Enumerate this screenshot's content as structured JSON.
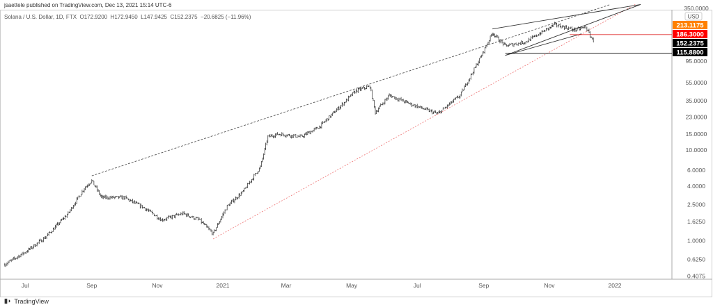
{
  "header": {
    "published": "jsaettele published on TradingView.com, Dec 13, 2021 15:14 UTC-6",
    "symbol": "Solana / U.S. Dollar, 1D, FTX",
    "open": "O172.9200",
    "high": "H172.9450",
    "low": "L147.9425",
    "close": "C152.2375",
    "change": "−20.6825 (−11.96%)"
  },
  "footer": {
    "brand": "TradingView"
  },
  "chart_data": {
    "type": "candlestick",
    "scale": "log",
    "currency": "USD",
    "ylim": [
      0.4075,
      350
    ],
    "y_ticks": [
      "350.0000",
      "95.0000",
      "55.0000",
      "35.0000",
      "23.0000",
      "15.0000",
      "10.0000",
      "6.0000",
      "4.0000",
      "2.5000",
      "1.6250",
      "1.0000",
      "0.6250",
      "0.4075"
    ],
    "y_tick_values": [
      350,
      95,
      55,
      35,
      23,
      15,
      10,
      6,
      4,
      2.5,
      1.625,
      1,
      0.625,
      0.4075
    ],
    "x_ticks": [
      [
        "Jul",
        "2020-07-01"
      ],
      [
        "Sep",
        "2020-09-01"
      ],
      [
        "Nov",
        "2020-11-01"
      ],
      [
        "2021",
        "2021-01-01"
      ],
      [
        "Mar",
        "2021-03-01"
      ],
      [
        "May",
        "2021-05-01"
      ],
      [
        "Jul",
        "2021-07-01"
      ],
      [
        "Sep",
        "2021-09-01"
      ],
      [
        "Nov",
        "2021-11-01"
      ],
      [
        "2022",
        "2022-01-01"
      ]
    ],
    "price_path": [
      [
        "2020-06-12",
        0.55
      ],
      [
        "2020-07-01",
        0.75
      ],
      [
        "2020-07-20",
        1.1
      ],
      [
        "2020-08-10",
        2.0
      ],
      [
        "2020-08-25",
        3.8
      ],
      [
        "2020-09-01",
        4.6
      ],
      [
        "2020-09-10",
        3.0
      ],
      [
        "2020-10-01",
        3.0
      ],
      [
        "2020-10-20",
        2.3
      ],
      [
        "2020-11-05",
        1.7
      ],
      [
        "2020-11-25",
        2.0
      ],
      [
        "2020-12-10",
        1.7
      ],
      [
        "2020-12-23",
        1.2
      ],
      [
        "2021-01-05",
        2.4
      ],
      [
        "2021-01-20",
        3.5
      ],
      [
        "2021-02-05",
        6.5
      ],
      [
        "2021-02-12",
        14
      ],
      [
        "2021-02-22",
        15
      ],
      [
        "2021-03-15",
        14
      ],
      [
        "2021-04-01",
        18
      ],
      [
        "2021-04-20",
        30
      ],
      [
        "2021-05-05",
        45
      ],
      [
        "2021-05-18",
        50
      ],
      [
        "2021-05-23",
        26
      ],
      [
        "2021-06-05",
        40
      ],
      [
        "2021-06-25",
        32
      ],
      [
        "2021-07-20",
        25
      ],
      [
        "2021-08-10",
        40
      ],
      [
        "2021-08-30",
        110
      ],
      [
        "2021-09-09",
        195
      ],
      [
        "2021-09-21",
        140
      ],
      [
        "2021-10-10",
        155
      ],
      [
        "2021-11-06",
        240
      ],
      [
        "2021-11-25",
        210
      ],
      [
        "2021-12-05",
        225
      ],
      [
        "2021-12-10",
        172
      ],
      [
        "2021-12-13",
        152
      ]
    ],
    "price_labels": [
      {
        "value": "213.1175",
        "color": "#ff8000",
        "price": 213.1175
      },
      {
        "value": "186.3000",
        "color": "#ff0000",
        "price": 186.3
      },
      {
        "value": "152.2375",
        "color": "#000000",
        "price": 152.2375
      },
      {
        "value": "115.8800",
        "color": "#000000",
        "price": 115.88
      }
    ],
    "trendlines": [
      {
        "from": [
          "2020-09-01",
          5.2
        ],
        "to": [
          "2021-12-28",
          400
        ],
        "color": "#555555",
        "style": "dashed"
      },
      {
        "from": [
          "2020-12-23",
          1.05
        ],
        "to": [
          "2022-01-20",
          400
        ],
        "color": "#f08080",
        "style": "dotted"
      },
      {
        "from": [
          "2021-09-09",
          215
        ],
        "to": [
          "2022-01-25",
          400
        ],
        "color": "#333333",
        "style": "solid"
      },
      {
        "from": [
          "2021-09-21",
          110
        ],
        "to": [
          "2022-01-25",
          400
        ],
        "color": "#333333",
        "style": "solid"
      },
      {
        "from": [
          "2021-09-21",
          110
        ],
        "to": [
          "2021-12-01",
          190
        ],
        "color": "#333333",
        "style": "solid"
      },
      {
        "from": [
          "2021-09-21",
          115.88
        ],
        "to": [
          "2022-02-28",
          115.88
        ],
        "color": "#000000",
        "style": "solid"
      },
      {
        "from": [
          "2021-11-20",
          186.3
        ],
        "to": [
          "2022-02-28",
          186.3
        ],
        "color": "#e03030",
        "style": "solid"
      }
    ]
  }
}
